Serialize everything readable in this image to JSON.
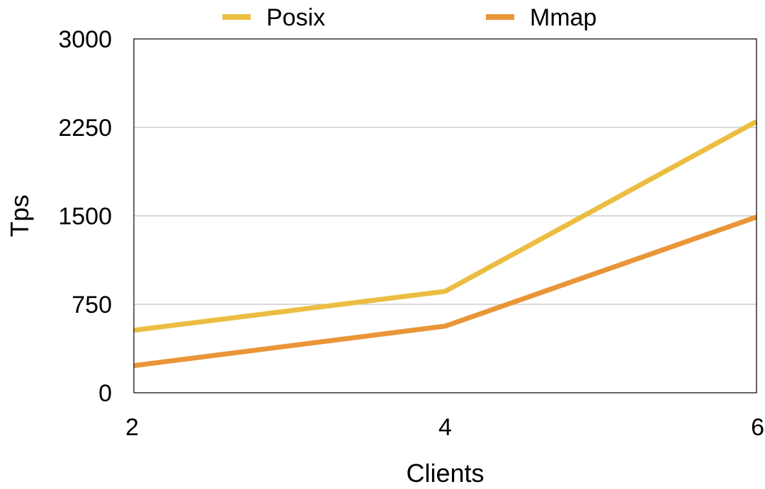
{
  "chart_data": {
    "type": "line",
    "title": "",
    "xlabel": "Clients",
    "ylabel": "Tps",
    "x": [
      2,
      4,
      6
    ],
    "x_tick_labels": [
      "2",
      "4",
      "6"
    ],
    "y_ticks": [
      0,
      750,
      1500,
      2250,
      3000
    ],
    "y_tick_labels": [
      "0",
      "750",
      "1500",
      "2250",
      "3000"
    ],
    "xlim": [
      2,
      6
    ],
    "ylim": [
      0,
      3000
    ],
    "grid": "horizontal",
    "legend_position": "top",
    "series": [
      {
        "name": "Posix",
        "color": "#EBBD41",
        "values": [
          530,
          860,
          2300
        ]
      },
      {
        "name": "Mmap",
        "color": "#E99538",
        "values": [
          230,
          565,
          1490
        ]
      }
    ]
  }
}
